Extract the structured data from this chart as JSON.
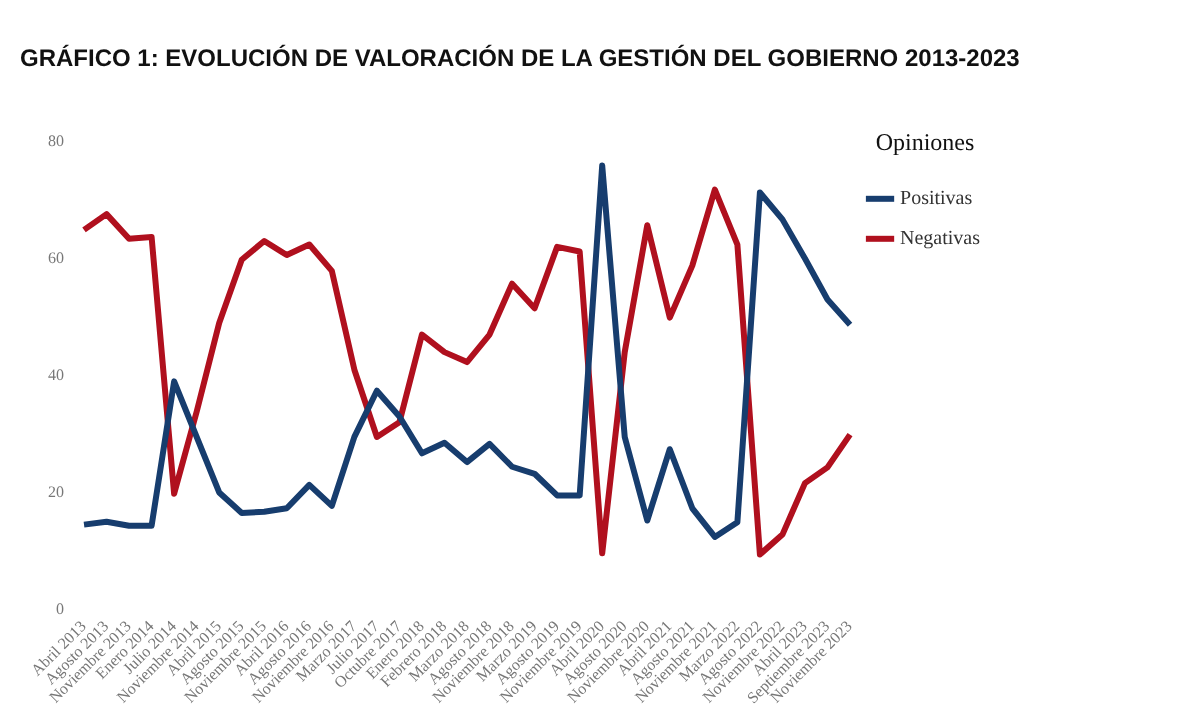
{
  "chart_data": {
    "type": "line",
    "title": "GRÁFICO 1: EVOLUCIÓN DE VALORACIÓN DE LA GESTIÓN DEL GOBIERNO 2013-2023",
    "legend_title": "Opiniones",
    "legend": "top right",
    "grid": false,
    "marker": "none",
    "line_style": "solid",
    "categories": [
      "Abril 2013",
      "Agosto 2013",
      "Noviembre 2013",
      "Enero 2014",
      "Julio 2014",
      "Noviembre 2014",
      "Abril 2015",
      "Agosto 2015",
      "Noviembre 2015",
      "Abril 2016",
      "Agosto 2016",
      "Noviembre 2016",
      "Marzo 2017",
      "Julio 2017",
      "Octubre 2017",
      "Enero 2018",
      "Febrero 2018",
      "Marzo 2018",
      "Agosto 2018",
      "Noviembre 2018",
      "Marzo 2019",
      "Agosto 2019",
      "Noviembre 2019",
      "Abril 2020",
      "Agosto 2020",
      "Noviembre 2020",
      "Abril 2021",
      "Agosto 2021",
      "Noviembre 2021",
      "Marzo 2022",
      "Agosto 2022",
      "Noviembre 2022",
      "Abril 2023",
      "Septiembre 2023",
      "Noviembre 2023"
    ],
    "ylim": [
      0,
      80
    ],
    "yticks": [
      0,
      20,
      40,
      60,
      80
    ],
    "series": [
      {
        "name": "Positivas",
        "color": "#173d6e",
        "values": [
          14.5,
          15,
          14.3,
          14.3,
          39,
          29.5,
          20,
          16.5,
          16.7,
          17.3,
          21.3,
          17.7,
          29.5,
          37.4,
          33,
          26.7,
          28.5,
          25.2,
          28.3,
          24.4,
          23.2,
          19.5,
          19.5,
          75.9,
          29.5,
          15.2,
          27.4,
          17.3,
          12.4,
          14.9,
          71.3,
          66.7,
          60,
          53,
          48.7
        ]
      },
      {
        "name": "Negativas",
        "color": "#b0101e",
        "values": [
          64.9,
          67.6,
          63.4,
          63.7,
          19.8,
          33.8,
          49,
          59.8,
          63,
          60.6,
          62.4,
          57.9,
          41,
          29.5,
          32,
          47,
          44,
          42.3,
          47,
          55.7,
          51.5,
          62,
          61.2,
          9.6,
          44,
          65.7,
          49.9,
          58.8,
          71.8,
          62.4,
          9.4,
          12.8,
          21.6,
          24.3,
          29.9
        ]
      }
    ]
  }
}
